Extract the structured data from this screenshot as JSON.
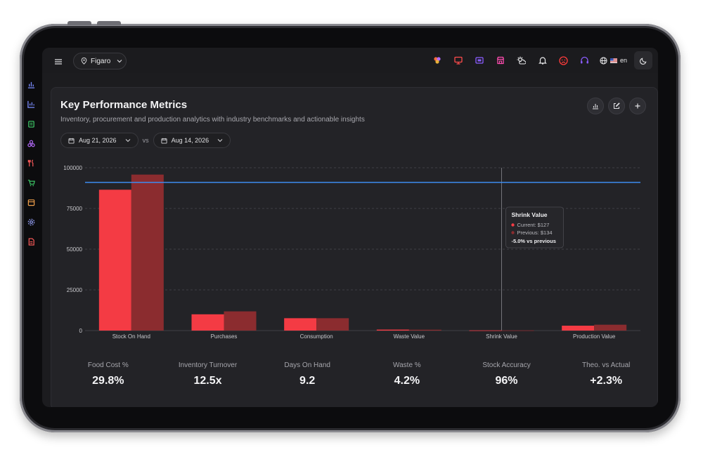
{
  "header": {
    "location": "Figaro",
    "language": "en"
  },
  "card": {
    "title": "Key Performance Metrics",
    "subtitle": "Inventory, procurement and production analytics with industry benchmarks and actionable insights",
    "date_current": "Aug 21, 2026",
    "vs_label": "vs",
    "date_previous": "Aug 14, 2026"
  },
  "colors": {
    "current": "#f43b44",
    "previous": "#8b2c2f",
    "benchmark": "#3d8bf0"
  },
  "chart_data": {
    "type": "bar",
    "categories": [
      "Stock On Hand",
      "Purchases",
      "Consumption",
      "Waste Value",
      "Shrink Value",
      "Production Value"
    ],
    "series": [
      {
        "values": [
          86500,
          10000,
          7600,
          600,
          127,
          3000
        ]
      },
      {
        "values": [
          95800,
          11800,
          7600,
          520,
          134,
          3600
        ]
      }
    ],
    "benchmark_value": 91000,
    "ylim": [
      0,
      100000
    ],
    "yticks": [
      0,
      25000,
      50000,
      75000,
      100000
    ],
    "grid": true,
    "tooltip": {
      "title": "Shrink Value",
      "current": "Current: $127",
      "previous": "Previous: $134",
      "change": "-5.0% vs previous"
    }
  },
  "kpis": [
    {
      "label": "Food Cost %",
      "value": "29.8%"
    },
    {
      "label": "Inventory Turnover",
      "value": "12.5x"
    },
    {
      "label": "Days On Hand",
      "value": "9.2"
    },
    {
      "label": "Waste %",
      "value": "4.2%"
    },
    {
      "label": "Stock Accuracy",
      "value": "96%"
    },
    {
      "label": "Theo. vs Actual",
      "value": "+2.3%"
    }
  ]
}
